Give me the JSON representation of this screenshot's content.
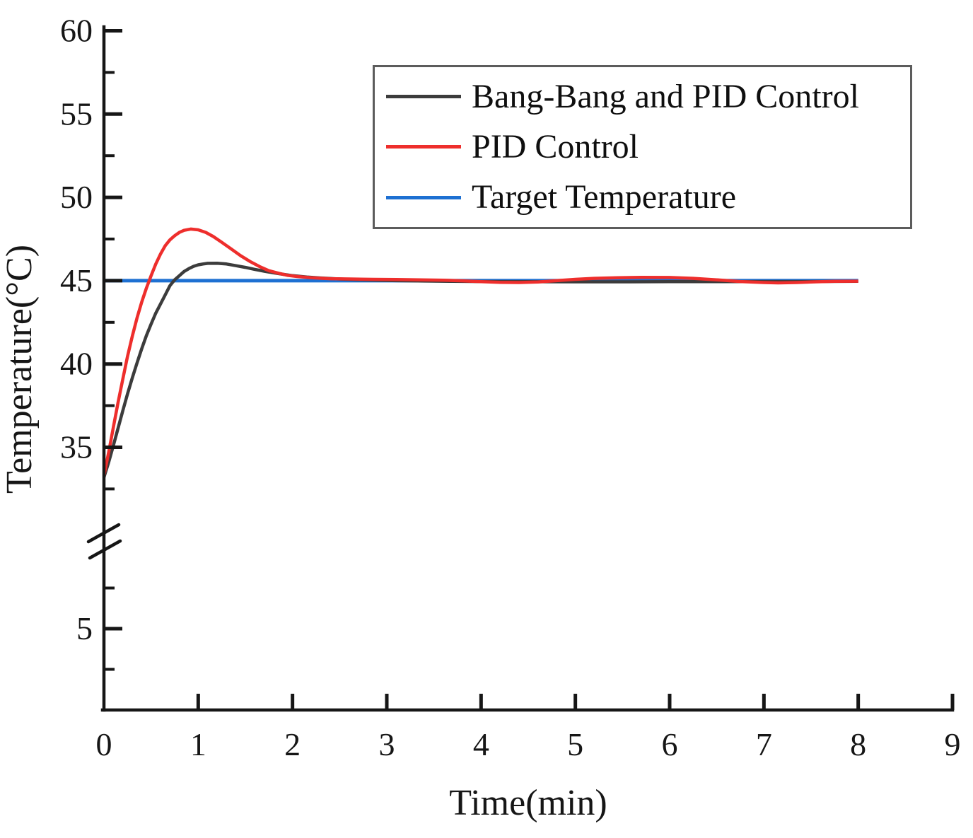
{
  "chart_data": {
    "type": "line",
    "title": "",
    "xlabel": "Time(min)",
    "ylabel": "Temperature(°C)",
    "x_ticks": [
      0,
      1,
      2,
      3,
      4,
      5,
      6,
      7,
      8,
      9
    ],
    "x_range": [
      0,
      9
    ],
    "grid": false,
    "axis_color": "#161616",
    "background_color": "#ffffff",
    "legend_position": "upper center",
    "y_axis": {
      "broken_axis": true,
      "upper_segment_major_ticks": [
        60,
        55,
        50,
        45,
        40,
        35
      ],
      "upper_segment_minor_ticks": [
        57.5,
        52.5,
        47.5,
        42.5,
        37.5,
        32.5
      ],
      "lower_segment_major_ticks": [
        5
      ],
      "lower_segment_minor_ticks": [
        7.5,
        2.5
      ],
      "upper_segment_labels": [
        "60",
        "55",
        "50",
        "45",
        "40",
        "35"
      ],
      "lower_segment_labels": [
        "5"
      ]
    },
    "target_temperature_value": 45,
    "series": [
      {
        "name": "Bang-Bang and PID Control",
        "color": "#3c3c3c",
        "points": [
          [
            0,
            33.2
          ],
          [
            0.05,
            34.1
          ],
          [
            0.1,
            35.1
          ],
          [
            0.15,
            36.15
          ],
          [
            0.2,
            37.2
          ],
          [
            0.25,
            38.2
          ],
          [
            0.3,
            39.15
          ],
          [
            0.35,
            40.05
          ],
          [
            0.4,
            40.9
          ],
          [
            0.45,
            41.7
          ],
          [
            0.5,
            42.4
          ],
          [
            0.55,
            43.05
          ],
          [
            0.6,
            43.6
          ],
          [
            0.65,
            44.15
          ],
          [
            0.7,
            44.7
          ],
          [
            0.75,
            45.05
          ],
          [
            0.8,
            45.3
          ],
          [
            0.85,
            45.55
          ],
          [
            0.9,
            45.72
          ],
          [
            0.95,
            45.86
          ],
          [
            1,
            45.95
          ],
          [
            1.05,
            46.0
          ],
          [
            1.1,
            46.04
          ],
          [
            1.2,
            46.05
          ],
          [
            1.3,
            46.0
          ],
          [
            1.4,
            45.9
          ],
          [
            1.5,
            45.8
          ],
          [
            1.6,
            45.68
          ],
          [
            1.7,
            45.57
          ],
          [
            1.8,
            45.47
          ],
          [
            1.9,
            45.38
          ],
          [
            2,
            45.3
          ],
          [
            2.15,
            45.22
          ],
          [
            2.3,
            45.16
          ],
          [
            2.5,
            45.1
          ],
          [
            2.7,
            45.06
          ],
          [
            2.9,
            45.03
          ],
          [
            3.1,
            45.0
          ],
          [
            3.4,
            44.98
          ],
          [
            3.7,
            44.96
          ],
          [
            4,
            44.95
          ],
          [
            4.5,
            44.94
          ],
          [
            5,
            44.93
          ],
          [
            5.5,
            44.93
          ],
          [
            6,
            44.94
          ],
          [
            6.5,
            44.94
          ],
          [
            7,
            44.95
          ],
          [
            7.5,
            44.95
          ],
          [
            8,
            44.96
          ]
        ]
      },
      {
        "name": "PID Control",
        "color": "#ee2e2c",
        "points": [
          [
            0,
            33.3
          ],
          [
            0.05,
            34.7
          ],
          [
            0.1,
            36.2
          ],
          [
            0.15,
            37.7
          ],
          [
            0.2,
            39.1
          ],
          [
            0.25,
            40.45
          ],
          [
            0.3,
            41.65
          ],
          [
            0.35,
            42.75
          ],
          [
            0.4,
            43.7
          ],
          [
            0.45,
            44.55
          ],
          [
            0.5,
            45.3
          ],
          [
            0.55,
            46.0
          ],
          [
            0.6,
            46.6
          ],
          [
            0.65,
            47.1
          ],
          [
            0.7,
            47.45
          ],
          [
            0.75,
            47.7
          ],
          [
            0.8,
            47.9
          ],
          [
            0.85,
            48.02
          ],
          [
            0.92,
            48.1
          ],
          [
            1,
            48.05
          ],
          [
            1.08,
            47.9
          ],
          [
            1.16,
            47.65
          ],
          [
            1.25,
            47.3
          ],
          [
            1.35,
            46.9
          ],
          [
            1.45,
            46.5
          ],
          [
            1.55,
            46.15
          ],
          [
            1.65,
            45.85
          ],
          [
            1.75,
            45.6
          ],
          [
            1.85,
            45.45
          ],
          [
            1.95,
            45.32
          ],
          [
            2.05,
            45.25
          ],
          [
            2.2,
            45.18
          ],
          [
            2.4,
            45.12
          ],
          [
            2.6,
            45.1
          ],
          [
            2.85,
            45.08
          ],
          [
            3.1,
            45.07
          ],
          [
            3.35,
            45.05
          ],
          [
            3.6,
            45.03
          ],
          [
            3.8,
            44.99
          ],
          [
            4,
            44.94
          ],
          [
            4.2,
            44.9
          ],
          [
            4.4,
            44.89
          ],
          [
            4.6,
            44.92
          ],
          [
            4.8,
            45.0
          ],
          [
            5,
            45.08
          ],
          [
            5.2,
            45.14
          ],
          [
            5.45,
            45.18
          ],
          [
            5.7,
            45.2
          ],
          [
            6,
            45.19
          ],
          [
            6.25,
            45.14
          ],
          [
            6.5,
            45.05
          ],
          [
            6.75,
            44.95
          ],
          [
            7,
            44.89
          ],
          [
            7.15,
            44.87
          ],
          [
            7.35,
            44.89
          ],
          [
            7.55,
            44.93
          ],
          [
            7.75,
            44.96
          ],
          [
            8,
            44.97
          ]
        ]
      },
      {
        "name": "Target Temperature",
        "color": "#1e70d2",
        "points": [
          [
            0,
            45
          ],
          [
            8,
            45
          ]
        ]
      }
    ]
  }
}
